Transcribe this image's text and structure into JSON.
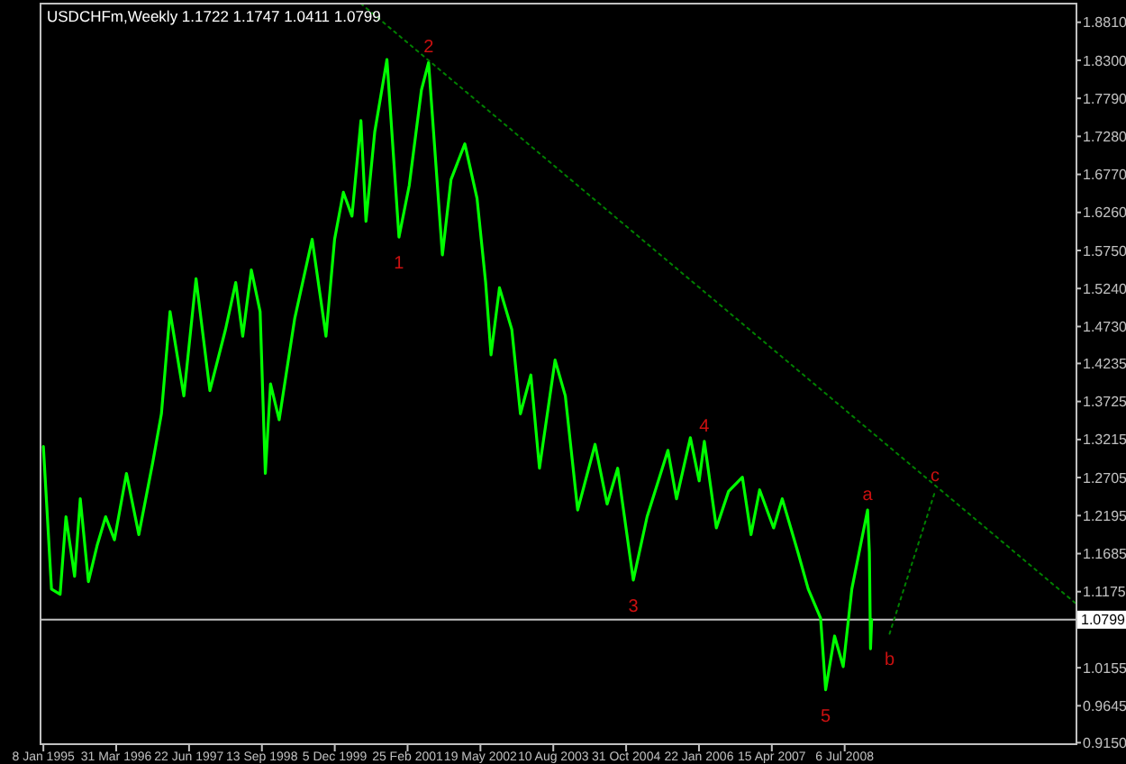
{
  "chart_data": {
    "type": "line",
    "title": "USDCHFm,Weekly  1.1722 1.1747 1.0411 1.0799",
    "xlim": [
      "1994-12-16",
      "2012-05-26"
    ],
    "xticks": [
      {
        "value": "1995-01-08",
        "label": "8 Jan 1995"
      },
      {
        "value": "1996-03-31",
        "label": "31 Mar 1996"
      },
      {
        "value": "1997-06-22",
        "label": "22 Jun 1997"
      },
      {
        "value": "1998-09-13",
        "label": "13 Sep 1998"
      },
      {
        "value": "1999-12-05",
        "label": "5 Dec 1999"
      },
      {
        "value": "2001-02-25",
        "label": "25 Feb 2001"
      },
      {
        "value": "2002-05-19",
        "label": "19 May 2002"
      },
      {
        "value": "2003-08-10",
        "label": "10 Aug 2003"
      },
      {
        "value": "2004-10-31",
        "label": "31 Oct 2004"
      },
      {
        "value": "2006-01-22",
        "label": "22 Jan 2006"
      },
      {
        "value": "2007-04-15",
        "label": "15 Apr 2007"
      },
      {
        "value": "2008-07-06",
        "label": "6 Jul 2008"
      }
    ],
    "ylim": [
      0.913,
      1.906
    ],
    "yticks": [
      {
        "value": 1.881,
        "label": "1.8810"
      },
      {
        "value": 1.83,
        "label": "1.8300"
      },
      {
        "value": 1.779,
        "label": "1.7790"
      },
      {
        "value": 1.728,
        "label": "1.7280"
      },
      {
        "value": 1.677,
        "label": "1.6770"
      },
      {
        "value": 1.626,
        "label": "1.6260"
      },
      {
        "value": 1.575,
        "label": "1.5750"
      },
      {
        "value": 1.524,
        "label": "1.5240"
      },
      {
        "value": 1.473,
        "label": "1.4730"
      },
      1.4235,
      1.3725,
      1.3215,
      1.2705,
      1.2195,
      1.1685,
      1.1175,
      1.0155,
      0.9645,
      {
        "value": 0.915,
        "label": "0.9150"
      }
    ],
    "grid": false,
    "ref_lines": [
      {
        "axis": "y",
        "value": 1.0799,
        "label": "1.0799",
        "color": "#c0c0c0"
      }
    ],
    "series": [
      {
        "color": "#00ff00",
        "x": [
          "1995-01-08",
          "1995-02-27",
          "1995-04-21",
          "1995-05-27",
          "1995-07-19",
          "1995-08-23",
          "1995-10-12",
          "1995-12-04",
          "1996-01-26",
          "1996-03-20",
          "1996-06-02",
          "1996-08-17",
          "1996-11-10",
          "1997-01-03",
          "1997-02-25",
          "1997-05-21",
          "1997-08-04",
          "1997-10-28",
          "1998-02-01",
          "1998-04-05",
          "1998-05-18",
          "1998-07-10",
          "1998-09-02",
          "1998-10-04",
          "1998-11-05",
          "1998-12-28",
          "1999-04-03",
          "1999-07-19",
          "1999-10-12",
          "1999-12-04",
          "2000-01-27",
          "2000-03-20",
          "2000-05-14",
          "2000-06-14",
          "2000-08-07",
          "2000-10-21",
          "2001-01-03",
          "2001-03-07",
          "2001-05-21",
          "2001-07-04",
          "2001-09-27",
          "2001-11-19",
          "2002-02-12",
          "2002-04-28",
          "2002-06-20",
          "2002-07-23",
          "2002-09-13",
          "2002-11-28",
          "2003-01-20",
          "2003-03-25",
          "2003-05-17",
          "2003-08-21",
          "2003-10-23",
          "2004-01-07",
          "2004-04-23",
          "2004-07-06",
          "2004-09-09",
          "2004-12-14",
          "2005-03-09",
          "2005-07-15",
          "2005-09-06",
          "2005-11-30",
          "2006-01-23",
          "2006-02-24",
          "2006-05-09",
          "2006-07-23",
          "2006-10-16",
          "2006-12-08",
          "2007-01-30",
          "2007-04-26",
          "2007-06-18",
          "2007-09-23",
          "2007-11-25",
          "2008-02-09",
          "2008-03-11",
          "2008-05-05",
          "2008-06-27",
          "2008-08-19",
          "2008-10-11",
          "2008-11-24",
          "2008-12-05",
          "2008-12-12",
          "2008-12-19"
        ],
        "values": [
          1.312,
          1.121,
          1.114,
          1.218,
          1.138,
          1.242,
          1.131,
          1.179,
          1.218,
          1.187,
          1.276,
          1.194,
          1.29,
          1.356,
          1.493,
          1.38,
          1.537,
          1.387,
          1.469,
          1.532,
          1.46,
          1.549,
          1.493,
          1.276,
          1.396,
          1.348,
          1.484,
          1.59,
          1.46,
          1.59,
          1.653,
          1.621,
          1.749,
          1.614,
          1.734,
          1.831,
          1.593,
          1.662,
          1.79,
          1.827,
          1.569,
          1.67,
          1.718,
          1.645,
          1.532,
          1.435,
          1.525,
          1.469,
          1.356,
          1.408,
          1.283,
          1.428,
          1.38,
          1.227,
          1.315,
          1.235,
          1.283,
          1.133,
          1.218,
          1.307,
          1.242,
          1.324,
          1.266,
          1.319,
          1.203,
          1.252,
          1.271,
          1.194,
          1.254,
          1.203,
          1.242,
          1.17,
          1.121,
          1.082,
          0.986,
          1.058,
          1.017,
          1.121,
          1.179,
          1.227,
          1.17,
          1.041,
          1.08
        ]
      },
      {
        "color": "#008000",
        "line_style": "dotted",
        "x": [
          "2000-05-14",
          "2012-05-26"
        ],
        "values": [
          1.906,
          1.102
        ]
      },
      {
        "color": "#008000",
        "line_style": "dotted",
        "x": [
          "2009-04-08",
          "2010-01-13"
        ],
        "values": [
          1.061,
          1.252
        ]
      }
    ],
    "annotations": [
      {
        "text": "1",
        "x": "2001-01-03",
        "y": 1.593
      },
      {
        "text": "2",
        "x": "2001-07-04",
        "y": 1.827
      },
      {
        "text": "3",
        "x": "2004-12-14",
        "y": 1.133
      },
      {
        "text": "4",
        "x": "2006-02-24",
        "y": 1.319
      },
      {
        "text": "5",
        "x": "2008-03-11",
        "y": 0.986
      },
      {
        "text": "a",
        "x": "2008-11-24",
        "y": 1.227
      },
      {
        "text": "b",
        "x": "2009-04-08",
        "y": 1.061
      },
      {
        "text": "c",
        "x": "2010-01-13",
        "y": 1.252
      }
    ]
  }
}
